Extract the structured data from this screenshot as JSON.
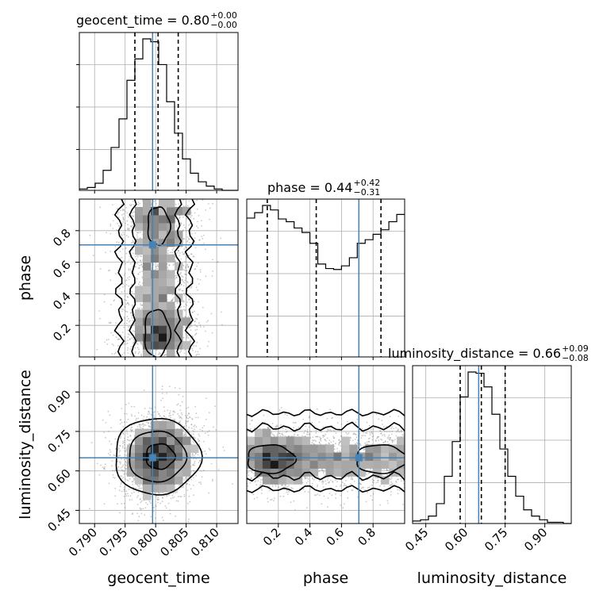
{
  "chart_data": {
    "type": "corner",
    "parameters": [
      "geocent_time",
      "phase",
      "luminosity_distance"
    ],
    "axis_labels": {
      "x": [
        "geocent_time",
        "phase",
        "luminosity_distance"
      ],
      "y": [
        "phase",
        "luminosity_distance"
      ]
    },
    "ranges": [
      [
        0.7875,
        0.8135
      ],
      [
        0.0,
        1.0
      ],
      [
        0.4,
        1.0
      ]
    ],
    "ticks": {
      "geocent_time": [
        "0.790",
        "0.795",
        "0.800",
        "0.805",
        "0.810"
      ],
      "phase_x": [
        "0.2",
        "0.4",
        "0.6",
        "0.8"
      ],
      "phase_y": [
        "0.8",
        "0.6",
        "0.4",
        "0.2"
      ],
      "luminosity_distance_x": [
        "0.45",
        "0.60",
        "0.75",
        "0.90"
      ],
      "luminosity_distance_y": [
        "0.90",
        "0.75",
        "0.60",
        "0.45"
      ]
    },
    "titles": [
      {
        "param": "geocent_time",
        "text": "geocent_time = 0.80",
        "plus": "+0.00",
        "minus": "−0.00"
      },
      {
        "param": "phase",
        "text": "phase = 0.44",
        "plus": "+0.42",
        "minus": "−0.31"
      },
      {
        "param": "luminosity_distance",
        "text": "luminosity_distance = 0.66",
        "plus": "+0.09",
        "minus": "−0.08"
      }
    ],
    "truths": [
      0.7995,
      0.71,
      0.65
    ],
    "quantiles": [
      [
        0.7966,
        0.8004,
        0.8037
      ],
      [
        0.13,
        0.44,
        0.85
      ],
      [
        0.58,
        0.66,
        0.75
      ]
    ],
    "histograms": [
      {
        "param": "geocent_time",
        "edges": [
          0.7875,
          0.7888,
          0.7901,
          0.7914,
          0.7927,
          0.794,
          0.7953,
          0.7966,
          0.7979,
          0.7992,
          0.8005,
          0.8018,
          0.8031,
          0.8044,
          0.8057,
          0.807,
          0.8083,
          0.8096,
          0.8109,
          0.8122,
          0.8135
        ],
        "counts": [
          1,
          2,
          5,
          14,
          30,
          50,
          77,
          92,
          106,
          104,
          88,
          62,
          40,
          22,
          12,
          6,
          3,
          1,
          0,
          0
        ]
      },
      {
        "param": "phase",
        "edges": [
          0.0,
          0.05,
          0.1,
          0.15,
          0.2,
          0.25,
          0.3,
          0.35,
          0.4,
          0.45,
          0.5,
          0.55,
          0.6,
          0.65,
          0.7,
          0.75,
          0.8,
          0.85,
          0.9,
          0.95,
          1.0
        ],
        "counts": [
          154,
          160,
          168,
          163,
          153,
          150,
          143,
          138,
          126,
          103,
          98,
          97,
          101,
          110,
          126,
          130,
          136,
          141,
          150,
          158
        ]
      },
      {
        "param": "luminosity_distance",
        "edges": [
          0.4,
          0.43,
          0.46,
          0.49,
          0.52,
          0.55,
          0.58,
          0.61,
          0.64,
          0.67,
          0.7,
          0.73,
          0.76,
          0.79,
          0.82,
          0.85,
          0.88,
          0.91,
          0.94,
          0.97,
          1.0
        ],
        "counts": [
          2,
          3,
          6,
          16,
          38,
          66,
          102,
          122,
          121,
          110,
          88,
          60,
          38,
          22,
          11,
          6,
          3,
          1,
          1,
          0
        ]
      }
    ],
    "grid": true,
    "truth_color": "#4682b4",
    "hist_color": "#000000",
    "scatter_color": "#888888"
  }
}
